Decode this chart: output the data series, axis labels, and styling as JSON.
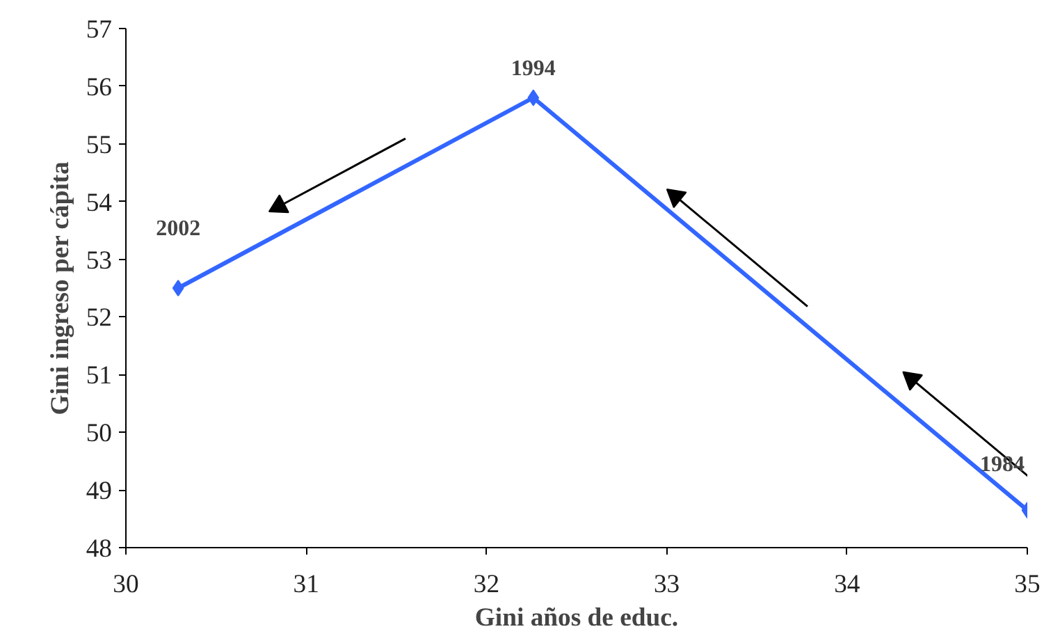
{
  "chart_data": {
    "type": "line",
    "xlabel": "Gini años de educ.",
    "ylabel": "Gini ingreso per cápita",
    "x": [
      30.29,
      32.26,
      35.0
    ],
    "series": [
      {
        "color": "#3366ff",
        "values": [
          52.5,
          55.8,
          48.65
        ]
      }
    ],
    "xlim": [
      30,
      35
    ],
    "xticks": [
      30,
      31,
      32,
      33,
      34,
      35
    ],
    "ylim": [
      48,
      57
    ],
    "yticks": [
      48,
      49,
      50,
      51,
      52,
      53,
      54,
      55,
      56,
      57
    ],
    "grid": false,
    "marker": "diamond",
    "line_style": "solid",
    "annotations": [
      {
        "text": "2002",
        "x": 30.29,
        "y": 52.5
      },
      {
        "text": "1994",
        "x": 32.26,
        "y": 55.8
      },
      {
        "text": "1984",
        "x": 35.0,
        "y": 48.65
      }
    ]
  }
}
